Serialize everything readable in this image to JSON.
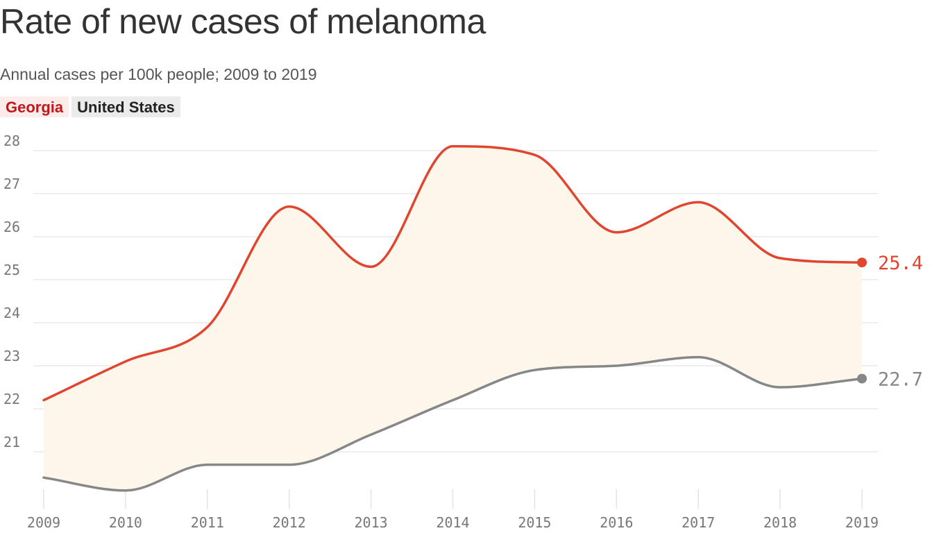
{
  "chart_data": {
    "type": "line",
    "title": "Rate of new cases of melanoma",
    "subtitle": "Annual cases per 100k people; 2009 to 2019",
    "x": [
      "2009",
      "2010",
      "2011",
      "2012",
      "2013",
      "2014",
      "2015",
      "2016",
      "2017",
      "2018",
      "2019"
    ],
    "series": [
      {
        "name": "Georgia",
        "color": "#e0452f",
        "legend_bg": "#fdecea",
        "legend_fg": "#c1171a",
        "values": [
          22.2,
          23.1,
          23.9,
          26.7,
          25.3,
          28.1,
          27.9,
          26.1,
          26.8,
          25.5,
          25.4
        ],
        "end_label": "25.4"
      },
      {
        "name": "United States",
        "color": "#878787",
        "legend_bg": "#ebebeb",
        "legend_fg": "#222222",
        "values": [
          20.4,
          20.1,
          20.7,
          20.7,
          21.4,
          22.2,
          22.9,
          23.0,
          23.2,
          22.5,
          22.7
        ],
        "end_label": "22.7"
      }
    ],
    "y_ticks": [
      "21",
      "22",
      "23",
      "24",
      "25",
      "26",
      "27",
      "28"
    ],
    "ylim": [
      20.1,
      28.2
    ],
    "grid": true,
    "fill_between_color": "#fdf6ea"
  }
}
